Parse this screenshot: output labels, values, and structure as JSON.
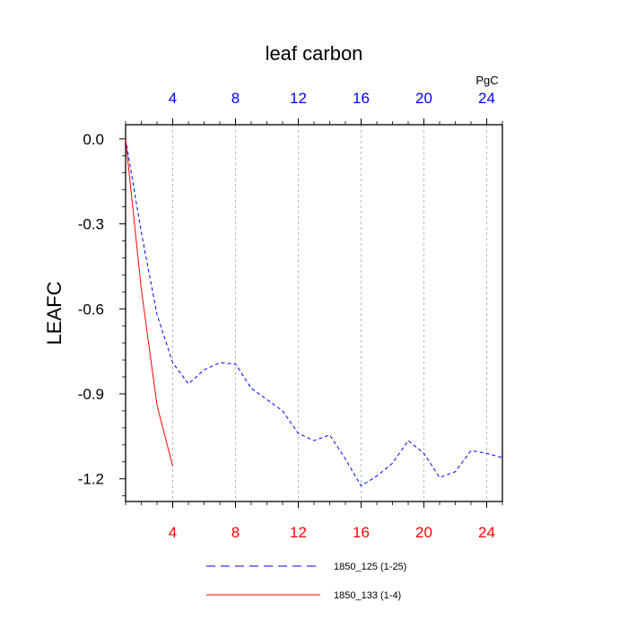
{
  "chart_data": {
    "type": "line",
    "title": "leaf carbon",
    "ylabel": "LEAFC",
    "units": "PgC",
    "xlim": [
      1,
      25
    ],
    "ylim": [
      -1.28,
      0.05
    ],
    "yticks": [
      0.0,
      -0.3,
      -0.6,
      -0.9,
      -1.2
    ],
    "ytick_labels": [
      "0.0",
      "-0.3",
      "-0.6",
      "-0.9",
      "-1.2"
    ],
    "xticks": [
      4,
      8,
      12,
      16,
      20,
      24
    ],
    "xtick_labels": [
      "4",
      "8",
      "12",
      "16",
      "20",
      "24"
    ],
    "grid": "vertical dashed",
    "colors": {
      "series_1": "#0000ff",
      "series_2": "#ff0000",
      "top_ticks": "#0000ff",
      "bottom_ticks": "#ff0000",
      "grid": "#aaaaaa"
    },
    "series": [
      {
        "name": "1850_125 (1-25)",
        "style": "dashed",
        "x": [
          1,
          2,
          3,
          4,
          5,
          6,
          7,
          8,
          9,
          10,
          11,
          12,
          13,
          14,
          15,
          16,
          17,
          18,
          19,
          20,
          21,
          22,
          23,
          24,
          25
        ],
        "y": [
          0.0,
          -0.33,
          -0.62,
          -0.79,
          -0.865,
          -0.815,
          -0.79,
          -0.795,
          -0.88,
          -0.92,
          -0.96,
          -1.04,
          -1.065,
          -1.045,
          -1.13,
          -1.225,
          -1.19,
          -1.145,
          -1.065,
          -1.11,
          -1.195,
          -1.175,
          -1.1,
          -1.11,
          -1.125
        ]
      },
      {
        "name": "1850_133 (1-4)",
        "style": "solid",
        "x": [
          1,
          2,
          3,
          4
        ],
        "y": [
          0.0,
          -0.53,
          -0.94,
          -1.155
        ]
      }
    ]
  }
}
